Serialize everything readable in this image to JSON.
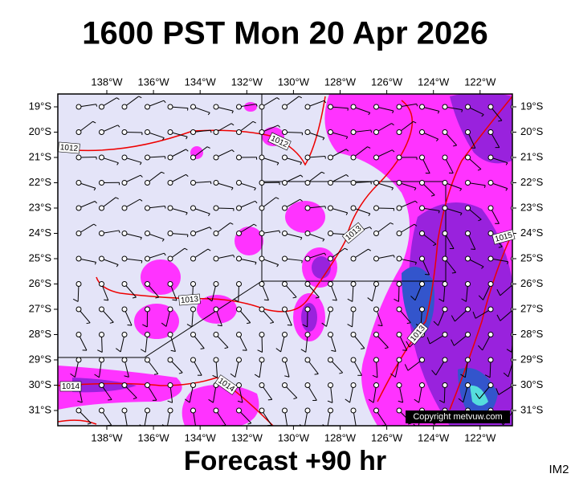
{
  "header": {
    "title": "1600 PST Mon 20 Apr 2026"
  },
  "map": {
    "lon_labels": [
      "138°W",
      "136°W",
      "134°W",
      "132°W",
      "130°W",
      "128°W",
      "126°W",
      "124°W",
      "122°W"
    ],
    "lat_labels": [
      "19°S",
      "20°S",
      "21°S",
      "22°S",
      "23°S",
      "24°S",
      "25°S",
      "26°S",
      "27°S",
      "28°S",
      "29°S",
      "30°S",
      "31°S"
    ],
    "isobar_labels": [
      "1012",
      "1012",
      "1013",
      "1013",
      "1013",
      "1014",
      "1014",
      "1015"
    ],
    "copyright": "Copyright metvuw.com"
  },
  "footer": {
    "forecast": "Forecast +90 hr",
    "code": "IM2"
  }
}
